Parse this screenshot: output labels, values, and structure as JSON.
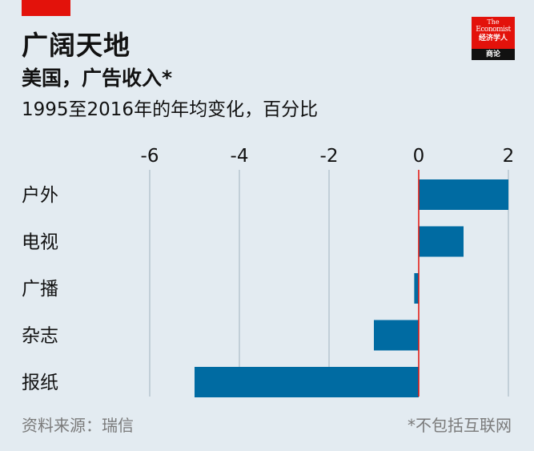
{
  "header": {
    "title": "广阔天地",
    "subtitle": "美国，广告收入*",
    "description": "1995至2016年的年均变化，百分比"
  },
  "logo": {
    "line1": "The",
    "line2": "Economist",
    "line3": "经济学人",
    "line4": "商论"
  },
  "footer": {
    "source": "资料来源：瑞信",
    "note": "*不包括互联网"
  },
  "colors": {
    "background": "#e3ebf1",
    "bar": "#006ba2",
    "zero_line": "#e3120b",
    "gridline": "#b7c6cf",
    "brand_red": "#e3120b"
  },
  "chart_data": {
    "type": "bar",
    "orientation": "horizontal",
    "categories": [
      "户外",
      "电视",
      "广播",
      "杂志",
      "报纸"
    ],
    "values": [
      2.0,
      1.0,
      -0.1,
      -1.0,
      -5.0
    ],
    "xlim": [
      -6,
      2
    ],
    "ticks": [
      -6,
      -4,
      -2,
      0,
      2
    ],
    "grid": true,
    "legend": "none"
  }
}
